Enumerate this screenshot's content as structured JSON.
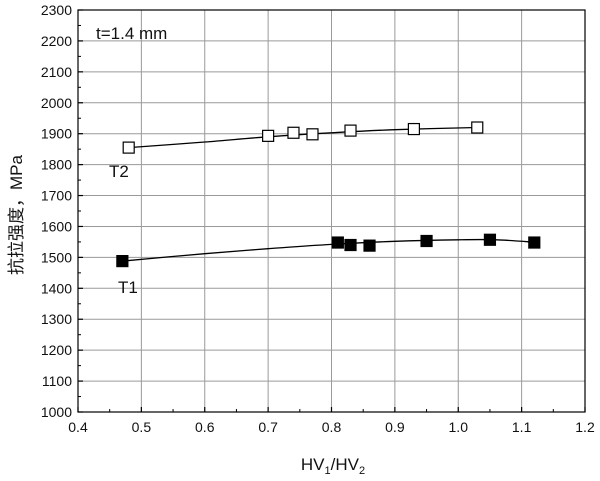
{
  "chart_data": {
    "type": "line",
    "annotation": "t=1.4 mm",
    "xlabel": {
      "base1": "HV",
      "sub1": "1",
      "sep": "/",
      "base2": "HV",
      "sub2": "2"
    },
    "ylabel": "抗拉强度，MPa",
    "xlim": [
      0.4,
      1.2
    ],
    "ylim": [
      1000,
      2300
    ],
    "xticks": [
      0.4,
      0.5,
      0.6,
      0.7,
      0.8,
      0.9,
      1.0,
      1.1,
      1.2
    ],
    "xtick_labels": [
      "0.4",
      "0.5",
      "0.6",
      "0.7",
      "0.8",
      "0.9",
      "1.0",
      "1.1",
      "1.2"
    ],
    "yticks": [
      1000,
      1100,
      1200,
      1300,
      1400,
      1500,
      1600,
      1700,
      1800,
      1900,
      2000,
      2100,
      2200,
      2300
    ],
    "grid": true,
    "series": [
      {
        "name": "T2",
        "marker": "open-square",
        "color": "#000000",
        "x": [
          0.48,
          0.7,
          0.74,
          0.77,
          0.83,
          0.93,
          1.03
        ],
        "y": [
          1855,
          1893,
          1903,
          1898,
          1910,
          1915,
          1920
        ],
        "fit": [
          [
            0.48,
            1855
          ],
          [
            0.6,
            1873
          ],
          [
            0.7,
            1890
          ],
          [
            0.8,
            1903
          ],
          [
            0.9,
            1913
          ],
          [
            1.03,
            1920
          ]
        ]
      },
      {
        "name": "T1",
        "marker": "filled-square",
        "color": "#000000",
        "x": [
          0.47,
          0.81,
          0.83,
          0.86,
          0.95,
          1.05,
          1.12
        ],
        "y": [
          1488,
          1548,
          1540,
          1538,
          1553,
          1557,
          1548
        ],
        "fit": [
          [
            0.47,
            1488
          ],
          [
            0.6,
            1512
          ],
          [
            0.7,
            1528
          ],
          [
            0.8,
            1542
          ],
          [
            0.9,
            1552
          ],
          [
            1.0,
            1557
          ],
          [
            1.06,
            1557
          ],
          [
            1.12,
            1549
          ]
        ]
      }
    ]
  }
}
